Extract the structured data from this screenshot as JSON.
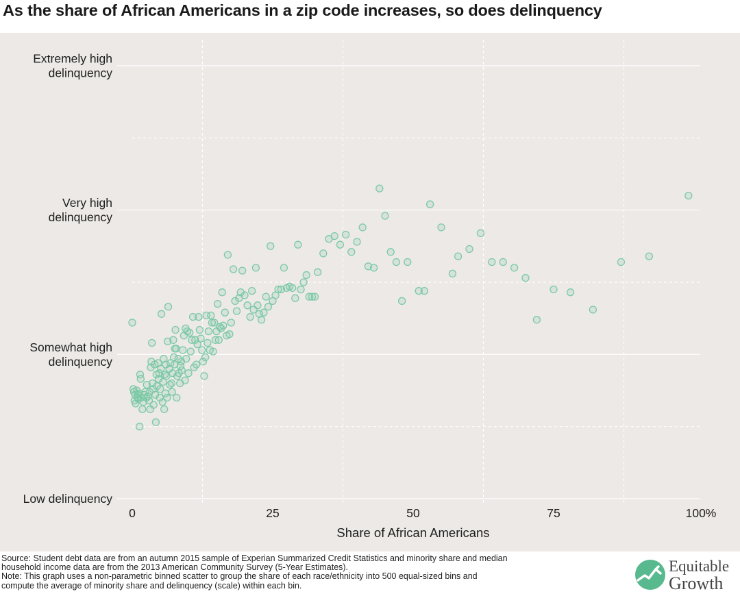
{
  "title": "As the share of African Americans in a zip code increases, so does delinquency",
  "footer": {
    "source_line1": "Source: Student debt data are from an autumn 2015 sample of Experian Summarized Credit Statistics and minority share and median",
    "source_line2": "household income data are from the 2013 American Community Survey (5-Year Estimates).",
    "note_line1": "Note: This graph uses a non-parametric binned scatter to group the share of each race/ethnicity into 500 equal-sized bins and",
    "note_line2": "compute the average of minority share and delinquency (scale) within each bin."
  },
  "logo": {
    "line1": "Equitable",
    "line2": "Growth"
  },
  "colors": {
    "point": "#7cc9a6",
    "panel": "#ece9e6",
    "grid": "#ffffff"
  },
  "chart_data": {
    "type": "scatter",
    "title": "As the share of African Americans in a zip code increases, so does delinquency",
    "xlabel": "Share of African Americans",
    "ylabel": "",
    "xlim": [
      0,
      100
    ],
    "ylim": [
      0,
      3
    ],
    "x_ticks": [
      {
        "value": 0,
        "label": "0"
      },
      {
        "value": 25,
        "label": "25"
      },
      {
        "value": 50,
        "label": "50"
      },
      {
        "value": 75,
        "label": "75"
      },
      {
        "value": 100,
        "label": "100%"
      }
    ],
    "y_ticks": [
      {
        "value": 0,
        "label": [
          "Low delinquency"
        ]
      },
      {
        "value": 1,
        "label": [
          "Somewhat high",
          "delinquency"
        ]
      },
      {
        "value": 2,
        "label": [
          "Very high",
          "delinquency"
        ]
      },
      {
        "value": 3,
        "label": [
          "Extremely high",
          "delinquency"
        ]
      }
    ],
    "grid": true,
    "legend": "none",
    "series": [
      {
        "points": [
          [
            0.0,
            1.22
          ],
          [
            0.2,
            0.76
          ],
          [
            0.3,
            0.74
          ],
          [
            0.4,
            0.68
          ],
          [
            0.5,
            0.72
          ],
          [
            0.6,
            0.66
          ],
          [
            0.8,
            0.75
          ],
          [
            0.9,
            0.7
          ],
          [
            1.0,
            0.72
          ],
          [
            1.1,
            0.69
          ],
          [
            1.2,
            0.73
          ],
          [
            1.3,
            0.5
          ],
          [
            1.4,
            0.86
          ],
          [
            1.5,
            0.83
          ],
          [
            1.6,
            0.7
          ],
          [
            1.8,
            0.62
          ],
          [
            2.0,
            0.67
          ],
          [
            2.1,
            0.72
          ],
          [
            2.3,
            0.74
          ],
          [
            2.5,
            0.7
          ],
          [
            2.6,
            0.79
          ],
          [
            2.8,
            0.71
          ],
          [
            3.0,
            0.68
          ],
          [
            3.1,
            0.74
          ],
          [
            3.2,
            0.62
          ],
          [
            3.3,
            0.91
          ],
          [
            3.4,
            0.95
          ],
          [
            3.5,
            1.08
          ],
          [
            3.6,
            0.8
          ],
          [
            3.7,
            0.76
          ],
          [
            3.8,
            0.65
          ],
          [
            4.0,
            0.93
          ],
          [
            4.1,
            0.72
          ],
          [
            4.2,
            0.53
          ],
          [
            4.3,
            0.86
          ],
          [
            4.4,
            0.78
          ],
          [
            4.6,
            0.94
          ],
          [
            4.7,
            0.83
          ],
          [
            4.8,
            0.87
          ],
          [
            4.9,
            0.7
          ],
          [
            5.0,
            0.76
          ],
          [
            5.1,
            0.9
          ],
          [
            5.2,
            1.28
          ],
          [
            5.4,
            0.67
          ],
          [
            5.5,
            0.81
          ],
          [
            5.6,
            0.97
          ],
          [
            5.7,
            0.62
          ],
          [
            5.8,
            0.86
          ],
          [
            5.9,
            0.73
          ],
          [
            6.0,
            0.93
          ],
          [
            6.1,
            0.85
          ],
          [
            6.2,
            0.7
          ],
          [
            6.3,
            1.09
          ],
          [
            6.4,
            1.33
          ],
          [
            6.6,
            0.9
          ],
          [
            6.7,
            0.79
          ],
          [
            6.8,
            0.94
          ],
          [
            7.0,
            0.8
          ],
          [
            7.1,
            0.74
          ],
          [
            7.2,
            0.87
          ],
          [
            7.3,
            1.1
          ],
          [
            7.4,
            0.98
          ],
          [
            7.5,
            0.93
          ],
          [
            7.6,
            1.04
          ],
          [
            7.7,
            1.17
          ],
          [
            7.8,
            1.04
          ],
          [
            7.9,
            0.7
          ],
          [
            8.0,
            0.85
          ],
          [
            8.2,
            0.97
          ],
          [
            8.3,
            0.87
          ],
          [
            8.5,
            0.8
          ],
          [
            8.6,
            0.92
          ],
          [
            8.7,
            0.95
          ],
          [
            8.8,
            0.89
          ],
          [
            9.0,
            1.03
          ],
          [
            9.2,
            1.13
          ],
          [
            9.4,
            0.82
          ],
          [
            9.5,
            1.18
          ],
          [
            9.6,
            0.97
          ],
          [
            9.8,
            1.16
          ],
          [
            10.0,
            0.87
          ],
          [
            10.2,
            1.15
          ],
          [
            10.4,
            1.02
          ],
          [
            10.6,
            1.1
          ],
          [
            10.8,
            1.26
          ],
          [
            11.0,
            0.91
          ],
          [
            11.2,
            1.1
          ],
          [
            11.4,
            0.93
          ],
          [
            11.6,
            1.07
          ],
          [
            11.8,
            1.26
          ],
          [
            12.0,
            1.17
          ],
          [
            12.2,
            1.11
          ],
          [
            12.4,
            1.03
          ],
          [
            12.6,
            0.95
          ],
          [
            12.8,
            0.85
          ],
          [
            13.0,
            0.98
          ],
          [
            13.2,
            1.27
          ],
          [
            13.4,
            1.08
          ],
          [
            13.6,
            1.16
          ],
          [
            13.8,
            1.03
          ],
          [
            14.0,
            1.27
          ],
          [
            14.2,
            1.22
          ],
          [
            14.4,
            1.02
          ],
          [
            14.6,
            1.22
          ],
          [
            14.8,
            1.1
          ],
          [
            15.0,
            1.16
          ],
          [
            15.2,
            1.35
          ],
          [
            15.4,
            1.1
          ],
          [
            15.6,
            1.19
          ],
          [
            15.8,
            1.18
          ],
          [
            16.0,
            1.43
          ],
          [
            16.2,
            1.2
          ],
          [
            16.5,
            1.29
          ],
          [
            16.8,
            1.13
          ],
          [
            17.0,
            1.69
          ],
          [
            17.3,
            1.14
          ],
          [
            17.6,
            1.22
          ],
          [
            18.0,
            1.59
          ],
          [
            18.3,
            1.37
          ],
          [
            18.6,
            1.3
          ],
          [
            19.0,
            1.39
          ],
          [
            19.3,
            1.43
          ],
          [
            19.6,
            1.58
          ],
          [
            20.0,
            1.41
          ],
          [
            20.5,
            1.34
          ],
          [
            21.0,
            1.26
          ],
          [
            21.3,
            1.44
          ],
          [
            21.6,
            1.31
          ],
          [
            22.0,
            1.6
          ],
          [
            22.3,
            1.34
          ],
          [
            22.6,
            1.28
          ],
          [
            23.0,
            1.24
          ],
          [
            23.4,
            1.29
          ],
          [
            23.8,
            1.4
          ],
          [
            24.2,
            1.33
          ],
          [
            24.6,
            1.75
          ],
          [
            25.0,
            1.37
          ],
          [
            25.5,
            1.41
          ],
          [
            26.0,
            1.45
          ],
          [
            26.5,
            1.45
          ],
          [
            27.0,
            1.6
          ],
          [
            27.5,
            1.46
          ],
          [
            28.0,
            1.47
          ],
          [
            28.5,
            1.46
          ],
          [
            29.0,
            1.39
          ],
          [
            29.5,
            1.76
          ],
          [
            30.0,
            1.45
          ],
          [
            30.5,
            1.5
          ],
          [
            31.0,
            1.55
          ],
          [
            31.5,
            1.4
          ],
          [
            32.0,
            1.4
          ],
          [
            32.5,
            1.4
          ],
          [
            33.0,
            1.57
          ],
          [
            34.0,
            1.7
          ],
          [
            35.0,
            1.8
          ],
          [
            36.0,
            1.82
          ],
          [
            37.0,
            1.76
          ],
          [
            38.0,
            1.83
          ],
          [
            39.0,
            1.71
          ],
          [
            40.0,
            1.78
          ],
          [
            41.0,
            1.88
          ],
          [
            42.0,
            1.61
          ],
          [
            43.0,
            1.6
          ],
          [
            44.0,
            2.15
          ],
          [
            45.0,
            1.96
          ],
          [
            46.0,
            1.71
          ],
          [
            47.0,
            1.64
          ],
          [
            48.0,
            1.37
          ],
          [
            49.0,
            1.64
          ],
          [
            51.0,
            1.44
          ],
          [
            52.0,
            1.44
          ],
          [
            53.0,
            2.04
          ],
          [
            55.0,
            1.88
          ],
          [
            57.0,
            1.56
          ],
          [
            58.0,
            1.68
          ],
          [
            60.0,
            1.73
          ],
          [
            62.0,
            1.84
          ],
          [
            64.0,
            1.64
          ],
          [
            66.0,
            1.64
          ],
          [
            68.0,
            1.6
          ],
          [
            70.0,
            1.53
          ],
          [
            72.0,
            1.24
          ],
          [
            75.0,
            1.45
          ],
          [
            78.0,
            1.43
          ],
          [
            82.0,
            1.31
          ],
          [
            87.0,
            1.64
          ],
          [
            92.0,
            1.68
          ],
          [
            99.0,
            2.1
          ]
        ]
      }
    ]
  }
}
